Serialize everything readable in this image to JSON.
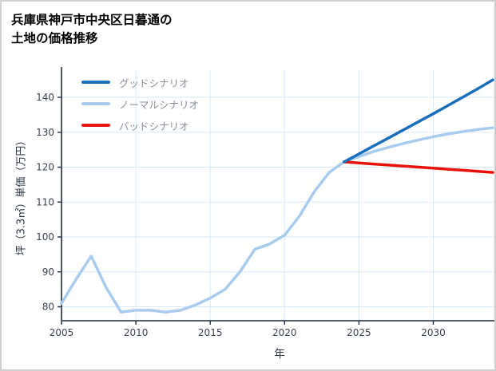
{
  "header": {
    "title_line1": "兵庫県神戸市中央区日暮通の",
    "title_line2": "土地の価格推移"
  },
  "chart_data": {
    "type": "line",
    "title": "兵庫県神戸市中央区日暮通の土地の価格推移",
    "xlabel": "年",
    "ylabel": "坪（3.3㎡）単価（万円）",
    "xlim": [
      2005,
      2034
    ],
    "ylim": [
      76,
      148
    ],
    "xticks": [
      2005,
      2010,
      2015,
      2020,
      2025,
      2030
    ],
    "yticks": [
      80,
      90,
      100,
      110,
      120,
      130,
      140
    ],
    "grid": true,
    "legend_position": "top-left",
    "colors": {
      "grid": "#d9e8f7",
      "axis": "#1f2d3d",
      "good": "#1a6fbd",
      "normal": "#a8ccee",
      "bad": "#e8140c"
    },
    "series": [
      {
        "name": "グッドシナリオ",
        "color": "#1a6fbd",
        "width": 3.5,
        "x": [
          2024,
          2025,
          2026,
          2027,
          2028,
          2029,
          2030,
          2031,
          2032,
          2033,
          2034
        ],
        "y": [
          121.5,
          123.8,
          126.1,
          128.4,
          130.7,
          133,
          135.3,
          137.7,
          140.1,
          142.5,
          145
        ]
      },
      {
        "name": "ノーマルシナリオ",
        "color": "#a8ccee",
        "width": 3.5,
        "x": [
          2005,
          2006,
          2007,
          2008,
          2009,
          2010,
          2011,
          2012,
          2013,
          2014,
          2015,
          2016,
          2017,
          2018,
          2019,
          2020,
          2021,
          2022,
          2023,
          2024,
          2025,
          2026,
          2027,
          2028,
          2029,
          2030,
          2031,
          2032,
          2033,
          2034
        ],
        "y": [
          81,
          88,
          94.5,
          85.5,
          78.5,
          79,
          79,
          78.5,
          79,
          80.5,
          82.5,
          85,
          90,
          96.5,
          98,
          100.5,
          106,
          113,
          118.5,
          121.5,
          123,
          124.5,
          125.7,
          126.8,
          127.8,
          128.7,
          129.5,
          130.2,
          130.8,
          131.3
        ]
      },
      {
        "name": "バッドシナリオ",
        "color": "#e8140c",
        "width": 3.5,
        "x": [
          2024,
          2025,
          2026,
          2027,
          2028,
          2029,
          2030,
          2031,
          2032,
          2033,
          2034
        ],
        "y": [
          121.5,
          121.2,
          120.9,
          120.6,
          120.3,
          120,
          119.7,
          119.4,
          119.1,
          118.8,
          118.5
        ]
      }
    ]
  }
}
